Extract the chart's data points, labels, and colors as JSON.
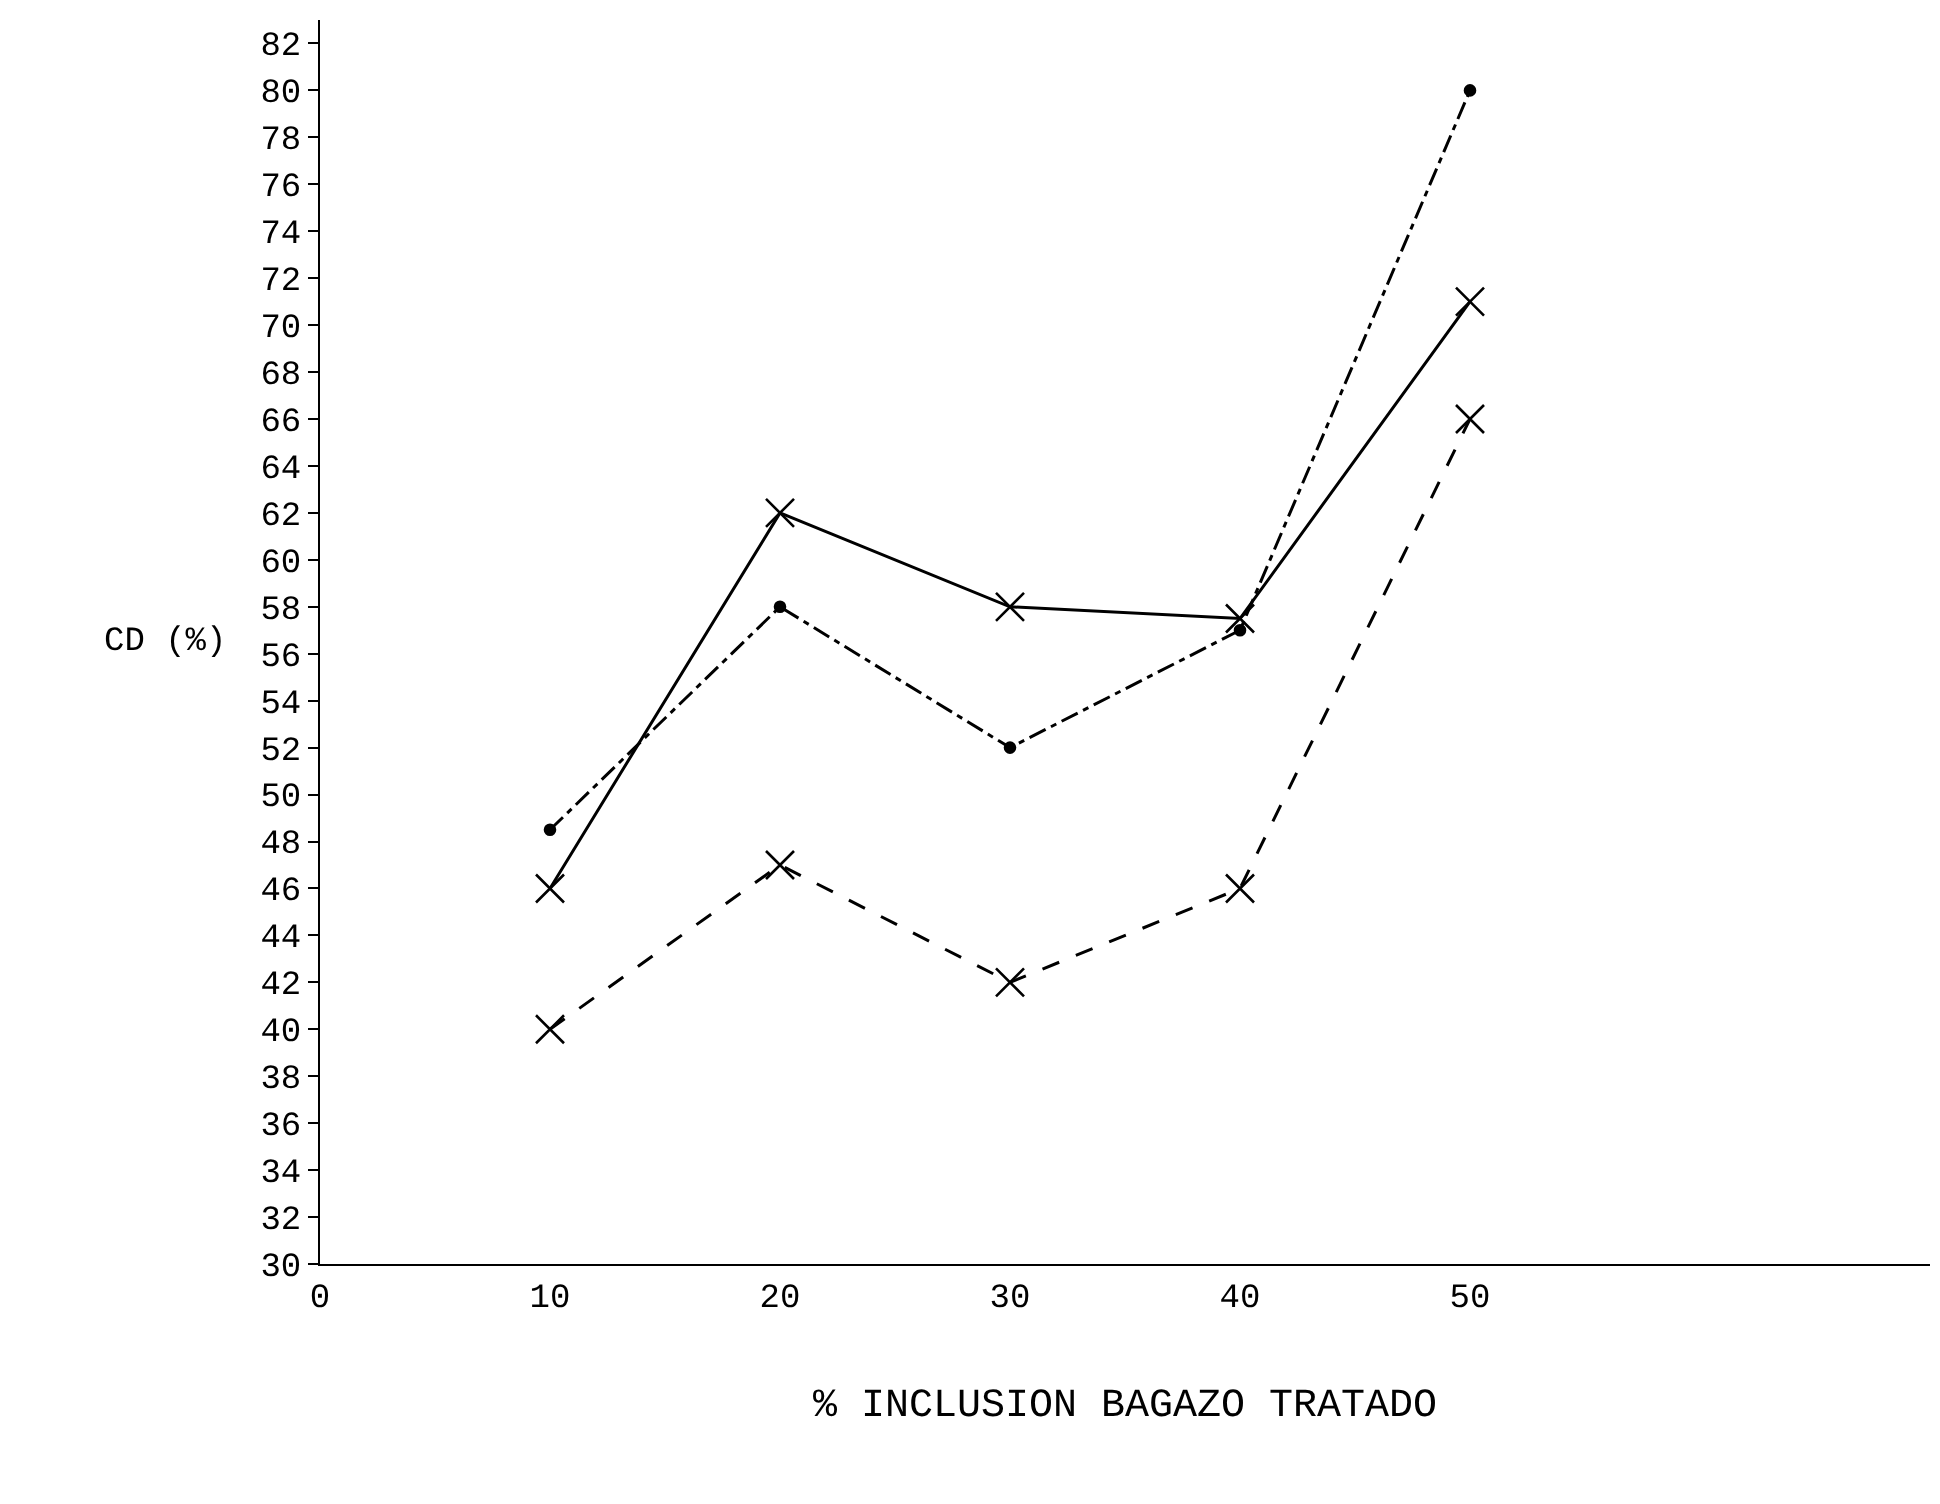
{
  "chart_data": {
    "type": "line",
    "xlabel": "% INCLUSION BAGAZO TRATADO",
    "ylabel": "CD (%)",
    "x": [
      10,
      20,
      30,
      40,
      50
    ],
    "series": [
      {
        "color": "#000000",
        "values": [
          46,
          62,
          58,
          57.5,
          71
        ],
        "line_style": "solid",
        "marker": "cross"
      },
      {
        "color": "#000000",
        "values": [
          48.5,
          58,
          52,
          57,
          80
        ],
        "line_style": "dashdot",
        "marker": "circle"
      },
      {
        "color": "#000000",
        "values": [
          40,
          47,
          42,
          46,
          66
        ],
        "line_style": "dashed",
        "marker": "cross"
      }
    ],
    "xlim": [
      0,
      70
    ],
    "xticks": [
      0,
      10,
      20,
      30,
      40,
      50
    ],
    "ylim": [
      30,
      83
    ],
    "yticks": [
      30,
      32,
      34,
      36,
      38,
      40,
      42,
      44,
      46,
      48,
      50,
      52,
      54,
      56,
      58,
      60,
      62,
      64,
      66,
      68,
      70,
      72,
      74,
      76,
      78,
      80,
      82
    ],
    "legend": false
  }
}
